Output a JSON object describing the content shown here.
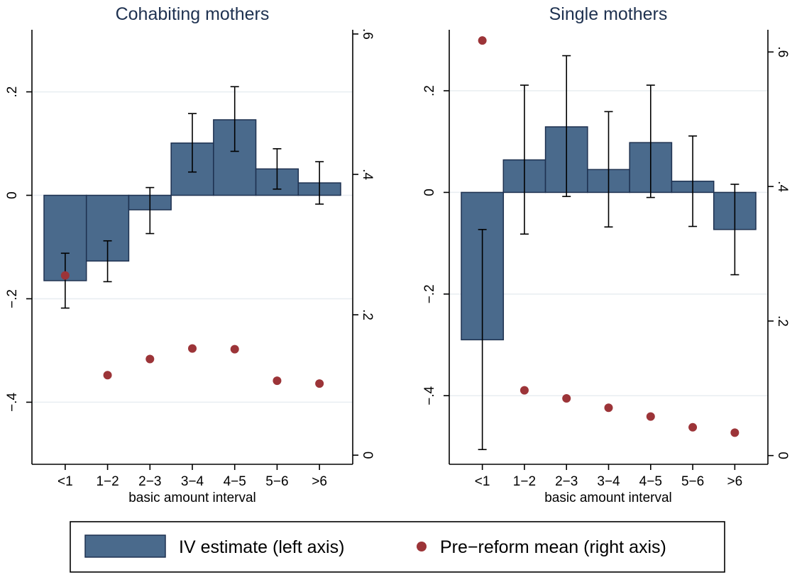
{
  "colors": {
    "bar": "#4a6a8c",
    "bar_stroke": "#1e3150",
    "dot": "#9c3438",
    "grid": "#e8edf1"
  },
  "legend": {
    "iv_label": "IV estimate (left axis)",
    "mean_label": "Pre−reform mean (right axis)"
  },
  "chart_data": [
    {
      "type": "bar",
      "title": "Cohabiting mothers",
      "xlabel": "basic amount interval",
      "categories": [
        "<1",
        "1−2",
        "2−3",
        "3−4",
        "4−5",
        "5−6",
        ">6"
      ],
      "left_axis": {
        "ylim": [
          -0.52,
          0.32
        ],
        "ticks": [
          -0.4,
          -0.2,
          0,
          0.2
        ],
        "tick_labels": [
          "−.4",
          "−.2",
          "0",
          ".2"
        ]
      },
      "right_axis": {
        "ylim": [
          -0.013,
          0.606
        ],
        "ticks": [
          0,
          0.2,
          0.4,
          0.6
        ],
        "tick_labels": [
          "0",
          ".2",
          ".4",
          ".6"
        ]
      },
      "grid": true,
      "series": [
        {
          "name": "IV estimate (left axis)",
          "kind": "bar",
          "axis": "left",
          "values": [
            -0.165,
            -0.127,
            -0.028,
            0.101,
            0.146,
            0.051,
            0.024
          ],
          "ci_low": [
            -0.218,
            -0.167,
            -0.074,
            0.045,
            0.085,
            0.012,
            -0.017
          ],
          "ci_high": [
            -0.112,
            -0.088,
            0.015,
            0.158,
            0.21,
            0.09,
            0.065
          ]
        },
        {
          "name": "Pre−reform mean (right axis)",
          "kind": "scatter",
          "axis": "right",
          "values": [
            0.256,
            0.114,
            0.137,
            0.152,
            0.151,
            0.106,
            0.102
          ]
        }
      ]
    },
    {
      "type": "bar",
      "title": "Single mothers",
      "xlabel": "basic amount interval",
      "categories": [
        "<1",
        "1−2",
        "2−3",
        "3−4",
        "4−5",
        "5−6",
        ">6"
      ],
      "left_axis": {
        "ylim": [
          -0.535,
          0.32
        ],
        "ticks": [
          -0.4,
          -0.2,
          0,
          0.2
        ],
        "tick_labels": [
          "−.4",
          "−.2",
          "0",
          ".2"
        ]
      },
      "right_axis": {
        "ylim": [
          -0.013,
          0.633
        ],
        "ticks": [
          0,
          0.2,
          0.4,
          0.6
        ],
        "tick_labels": [
          "0",
          ".2",
          ".4",
          ".6"
        ]
      },
      "grid": true,
      "series": [
        {
          "name": "IV estimate (left axis)",
          "kind": "bar",
          "axis": "left",
          "values": [
            -0.29,
            0.064,
            0.129,
            0.045,
            0.098,
            0.022,
            -0.073
          ],
          "ci_low": [
            -0.506,
            -0.082,
            -0.008,
            -0.068,
            -0.01,
            -0.067,
            -0.162
          ],
          "ci_high": [
            -0.073,
            0.211,
            0.269,
            0.159,
            0.211,
            0.111,
            0.016
          ]
        },
        {
          "name": "Pre−reform mean (right axis)",
          "kind": "scatter",
          "axis": "right",
          "values": [
            0.617,
            0.097,
            0.085,
            0.071,
            0.058,
            0.042,
            0.034
          ]
        }
      ]
    }
  ]
}
